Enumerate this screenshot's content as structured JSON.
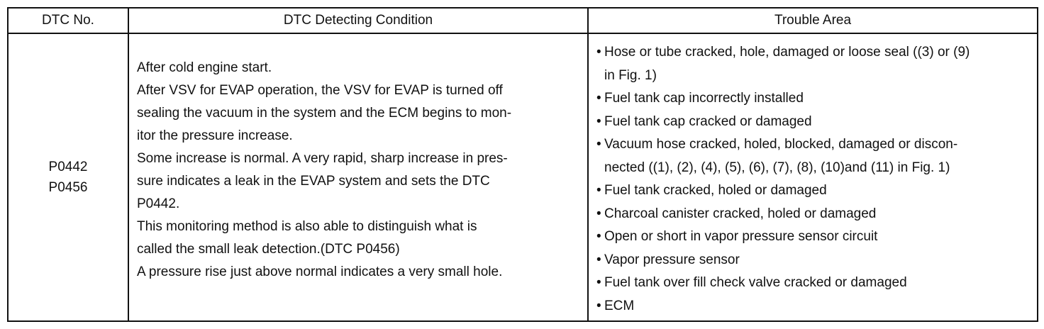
{
  "table": {
    "headers": {
      "dtc_no": "DTC No.",
      "condition": "DTC Detecting Condition",
      "trouble": "Trouble Area"
    },
    "codes": [
      "P0442",
      "P0456"
    ],
    "condition_lines": [
      "After cold engine start.",
      "After VSV for EVAP operation, the VSV for EVAP is turned off",
      "sealing the vacuum in the system and the ECM begins to mon-",
      "itor the pressure increase.",
      "Some increase is normal. A very rapid, sharp increase in pres-",
      "sure indicates a leak in the EVAP system and sets the DTC",
      "P0442.",
      "This monitoring method is also able to distinguish what is",
      "called the small leak detection.(DTC P0456)",
      "A pressure rise just above normal indicates a very small hole."
    ],
    "bullet_glyph": "•",
    "trouble_items": [
      {
        "lines": [
          "Hose or tube cracked, hole, damaged or loose seal ((3) or (9)",
          "in Fig. 1)"
        ]
      },
      {
        "lines": [
          "Fuel tank cap incorrectly installed"
        ]
      },
      {
        "lines": [
          "Fuel tank cap cracked or damaged"
        ]
      },
      {
        "lines": [
          "Vacuum hose cracked, holed, blocked, damaged or discon-",
          "nected ((1), (2), (4), (5), (6), (7), (8), (10)and (11) in Fig. 1)"
        ]
      },
      {
        "lines": [
          "Fuel tank cracked, holed or damaged"
        ]
      },
      {
        "lines": [
          "Charcoal canister cracked, holed or damaged"
        ]
      },
      {
        "lines": [
          "Open or short in vapor pressure sensor circuit"
        ]
      },
      {
        "lines": [
          "Vapor pressure sensor"
        ]
      },
      {
        "lines": [
          "Fuel tank over fill check valve cracked or damaged"
        ]
      },
      {
        "lines": [
          "ECM"
        ]
      }
    ]
  }
}
